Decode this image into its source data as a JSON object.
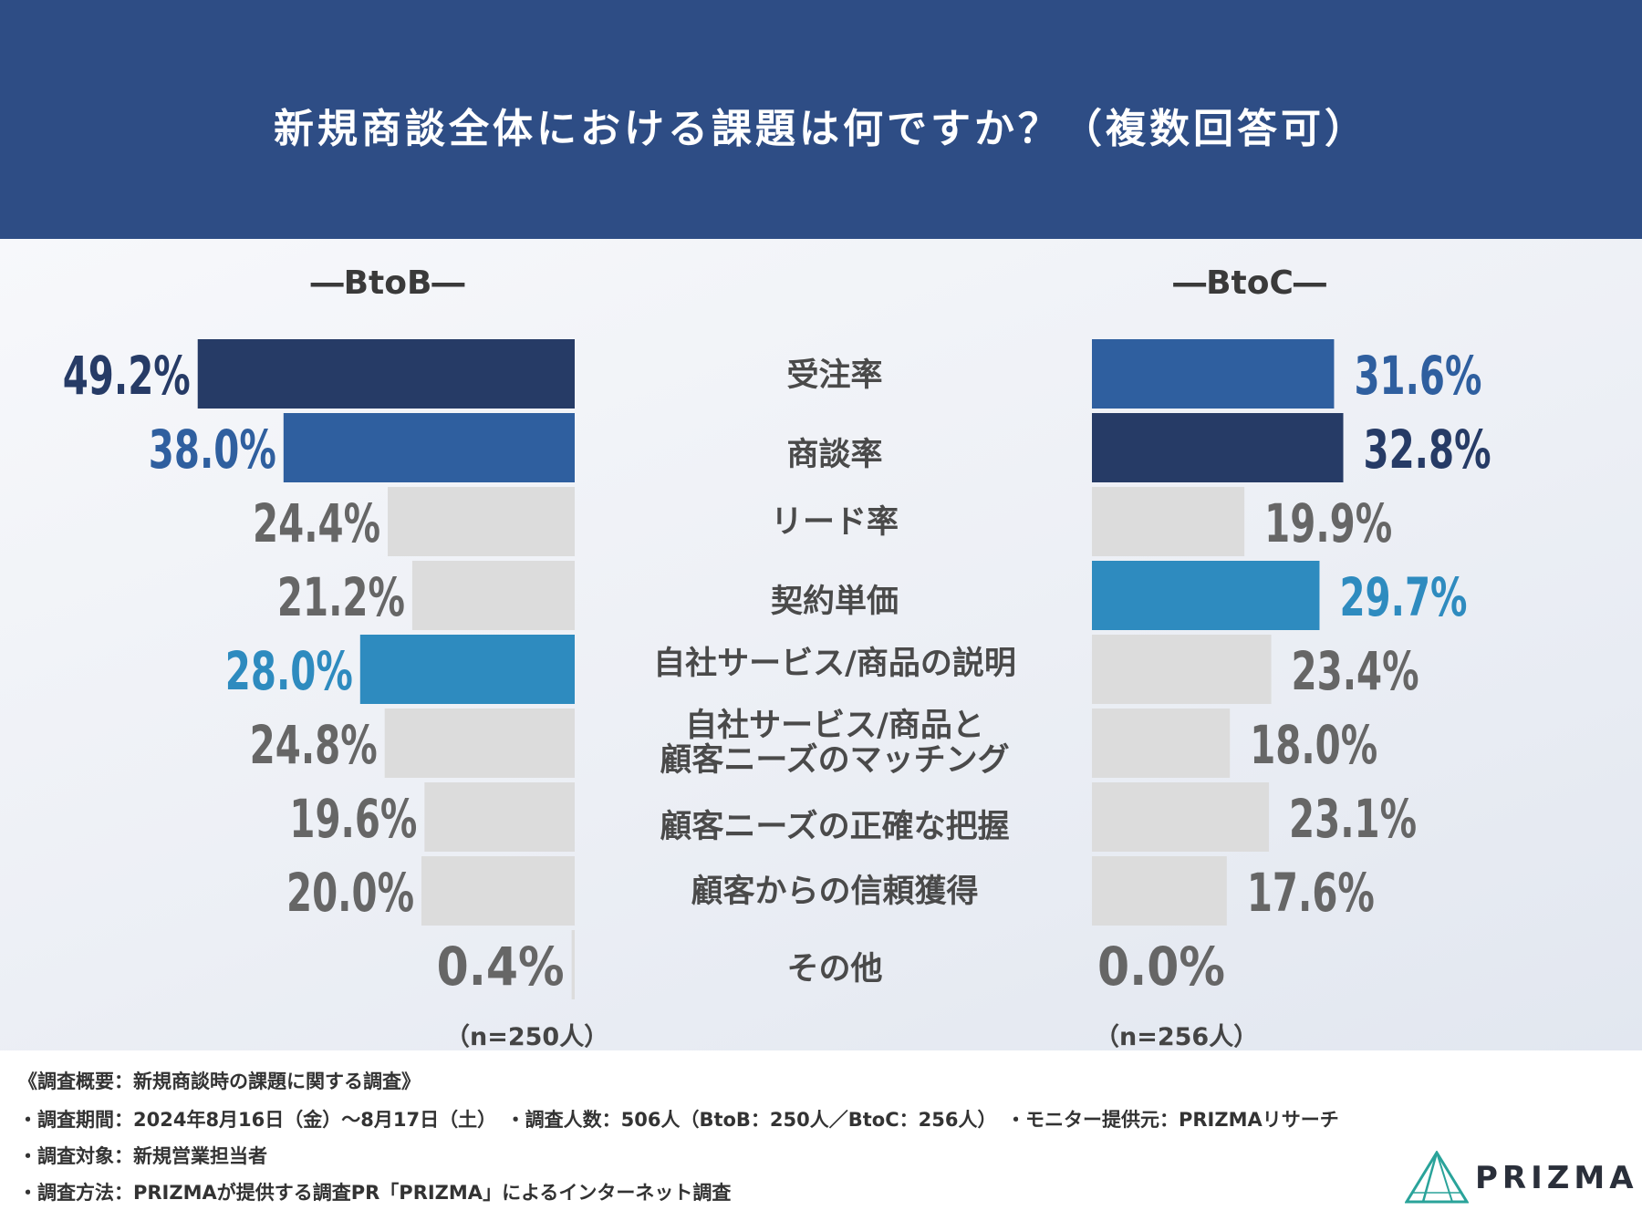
{
  "title": "新規商談全体における課題は何ですか？（複数回答可）",
  "panels": {
    "left_title": "―BtoB―",
    "right_title": "―BtoC―",
    "left_n": "（n=250人）",
    "right_n": "（n=256人）"
  },
  "chart_data": {
    "type": "bar",
    "orientation": "horizontal",
    "title": "新規商談全体における課題は何ですか？（複数回答可）",
    "categories": [
      "受注率",
      "商談率",
      "リード率",
      "契約単価",
      "自社サービス/商品の説明",
      "自社サービス/商品と\n顧客ニーズのマッチング",
      "顧客ニーズの正確な把握",
      "顧客からの信頼獲得",
      "その他"
    ],
    "series": [
      {
        "name": "BtoB",
        "values": [
          49.2,
          38.0,
          24.4,
          21.2,
          28.0,
          24.8,
          19.6,
          20.0,
          0.4
        ],
        "labels": [
          "49.2%",
          "38.0%",
          "24.4%",
          "21.2%",
          "28.0%",
          "24.8%",
          "19.6%",
          "20.0%",
          "0.4%"
        ],
        "colors": [
          "#263b66",
          "#2f5f9f",
          "#dcdcdc",
          "#dcdcdc",
          "#2e8bbf",
          "#dcdcdc",
          "#dcdcdc",
          "#dcdcdc",
          "#dcdcdc"
        ],
        "label_colors": [
          "#263b66",
          "#2f5f9f",
          "#666666",
          "#666666",
          "#2e8bbf",
          "#666666",
          "#666666",
          "#666666",
          "#666666"
        ]
      },
      {
        "name": "BtoC",
        "values": [
          31.6,
          32.8,
          19.9,
          29.7,
          23.4,
          18.0,
          23.1,
          17.6,
          0.0
        ],
        "labels": [
          "31.6%",
          "32.8%",
          "19.9%",
          "29.7%",
          "23.4%",
          "18.0%",
          "23.1%",
          "17.6%",
          "0.0%"
        ],
        "colors": [
          "#2f5f9f",
          "#263b66",
          "#dcdcdc",
          "#2e8bbf",
          "#dcdcdc",
          "#dcdcdc",
          "#dcdcdc",
          "#dcdcdc",
          "#dcdcdc"
        ],
        "label_colors": [
          "#2f5f9f",
          "#263b66",
          "#666666",
          "#2e8bbf",
          "#666666",
          "#666666",
          "#666666",
          "#666666",
          "#666666"
        ]
      }
    ]
  },
  "footer": {
    "summary": "《調査概要：新規商談時の課題に関する調査》",
    "period": "・調査期間：2024年8月16日（金）～8月17日（土）　・調査人数：506人（BtoB：250人／BtoC：256人）　・モニター提供元：PRIZMAリサーチ",
    "target": "・調査対象：新規営業担当者",
    "method": "・調査方法：PRIZMAが提供する調査PR「PRIZMA」によるインターネット調査",
    "logo": "PRIZMA"
  },
  "colors": {
    "header": "#2e4d85",
    "navy": "#263b66",
    "blue": "#2f5f9f",
    "cyan": "#2e8bbf",
    "gray": "#dcdcdc"
  }
}
